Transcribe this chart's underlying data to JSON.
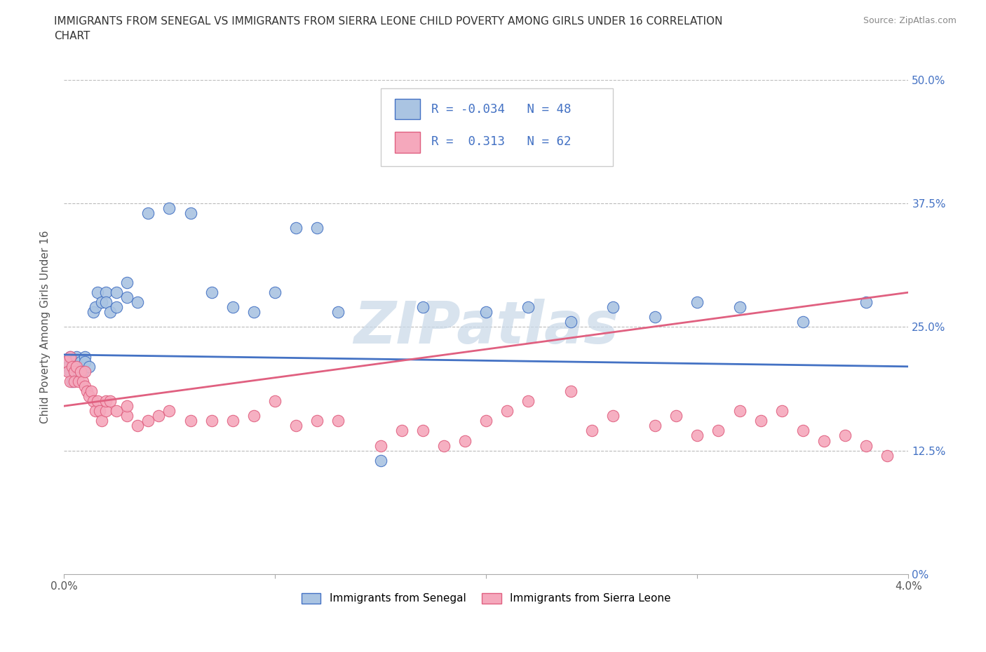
{
  "title": "IMMIGRANTS FROM SENEGAL VS IMMIGRANTS FROM SIERRA LEONE CHILD POVERTY AMONG GIRLS UNDER 16 CORRELATION\nCHART",
  "source": "Source: ZipAtlas.com",
  "ylabel": "Child Poverty Among Girls Under 16",
  "watermark": "ZIPatlas",
  "x_min": 0.0,
  "x_max": 0.04,
  "y_min": 0.0,
  "y_max": 0.5,
  "x_tick_labels_outer": [
    "0.0%",
    "4.0%"
  ],
  "y_ticks": [
    0.0,
    0.125,
    0.25,
    0.375,
    0.5
  ],
  "y_tick_labels": [
    "0%",
    "12.5%",
    "25.0%",
    "37.5%",
    "50.0%"
  ],
  "senegal_R": -0.034,
  "senegal_N": 48,
  "sierraleone_R": 0.313,
  "sierraleone_N": 62,
  "senegal_color": "#aac4e2",
  "sierraleone_color": "#f5a8bc",
  "senegal_line_color": "#4472c4",
  "sierraleone_line_color": "#e06080",
  "legend_label_senegal": "Immigrants from Senegal",
  "legend_label_sierraleone": "Immigrants from Sierra Leone",
  "senegal_trend_x0": 0.0,
  "senegal_trend_y0": 0.222,
  "senegal_trend_x1": 0.04,
  "senegal_trend_y1": 0.21,
  "sierraleone_trend_x0": 0.0,
  "sierraleone_trend_y0": 0.17,
  "sierraleone_trend_x1": 0.04,
  "sierraleone_trend_y1": 0.285,
  "senegal_x": [
    0.0001,
    0.0002,
    0.0003,
    0.0003,
    0.0004,
    0.0004,
    0.0005,
    0.0006,
    0.0006,
    0.0007,
    0.0008,
    0.0009,
    0.001,
    0.001,
    0.0012,
    0.0014,
    0.0015,
    0.0016,
    0.0018,
    0.002,
    0.002,
    0.0022,
    0.0025,
    0.0025,
    0.003,
    0.003,
    0.0035,
    0.004,
    0.005,
    0.006,
    0.007,
    0.008,
    0.009,
    0.01,
    0.011,
    0.012,
    0.013,
    0.015,
    0.017,
    0.02,
    0.022,
    0.024,
    0.026,
    0.028,
    0.03,
    0.032,
    0.035,
    0.038
  ],
  "senegal_y": [
    0.215,
    0.21,
    0.22,
    0.205,
    0.215,
    0.195,
    0.21,
    0.22,
    0.21,
    0.205,
    0.215,
    0.205,
    0.22,
    0.215,
    0.21,
    0.265,
    0.27,
    0.285,
    0.275,
    0.285,
    0.275,
    0.265,
    0.285,
    0.27,
    0.28,
    0.295,
    0.275,
    0.365,
    0.37,
    0.365,
    0.285,
    0.27,
    0.265,
    0.285,
    0.35,
    0.35,
    0.265,
    0.115,
    0.27,
    0.265,
    0.27,
    0.255,
    0.27,
    0.26,
    0.275,
    0.27,
    0.255,
    0.275
  ],
  "sierraleone_x": [
    0.0001,
    0.0002,
    0.0003,
    0.0003,
    0.0004,
    0.0005,
    0.0005,
    0.0006,
    0.0007,
    0.0008,
    0.0009,
    0.001,
    0.001,
    0.0011,
    0.0012,
    0.0013,
    0.0014,
    0.0015,
    0.0016,
    0.0017,
    0.0018,
    0.002,
    0.002,
    0.0022,
    0.0025,
    0.003,
    0.003,
    0.0035,
    0.004,
    0.0045,
    0.005,
    0.006,
    0.007,
    0.008,
    0.009,
    0.01,
    0.011,
    0.012,
    0.013,
    0.015,
    0.016,
    0.017,
    0.018,
    0.019,
    0.02,
    0.021,
    0.022,
    0.024,
    0.025,
    0.026,
    0.028,
    0.029,
    0.03,
    0.031,
    0.032,
    0.033,
    0.034,
    0.035,
    0.036,
    0.037,
    0.038,
    0.039
  ],
  "sierraleone_y": [
    0.215,
    0.205,
    0.22,
    0.195,
    0.21,
    0.205,
    0.195,
    0.21,
    0.195,
    0.205,
    0.195,
    0.205,
    0.19,
    0.185,
    0.18,
    0.185,
    0.175,
    0.165,
    0.175,
    0.165,
    0.155,
    0.165,
    0.175,
    0.175,
    0.165,
    0.16,
    0.17,
    0.15,
    0.155,
    0.16,
    0.165,
    0.155,
    0.155,
    0.155,
    0.16,
    0.175,
    0.15,
    0.155,
    0.155,
    0.13,
    0.145,
    0.145,
    0.13,
    0.135,
    0.155,
    0.165,
    0.175,
    0.185,
    0.145,
    0.16,
    0.15,
    0.16,
    0.14,
    0.145,
    0.165,
    0.155,
    0.165,
    0.145,
    0.135,
    0.14,
    0.13,
    0.12
  ]
}
